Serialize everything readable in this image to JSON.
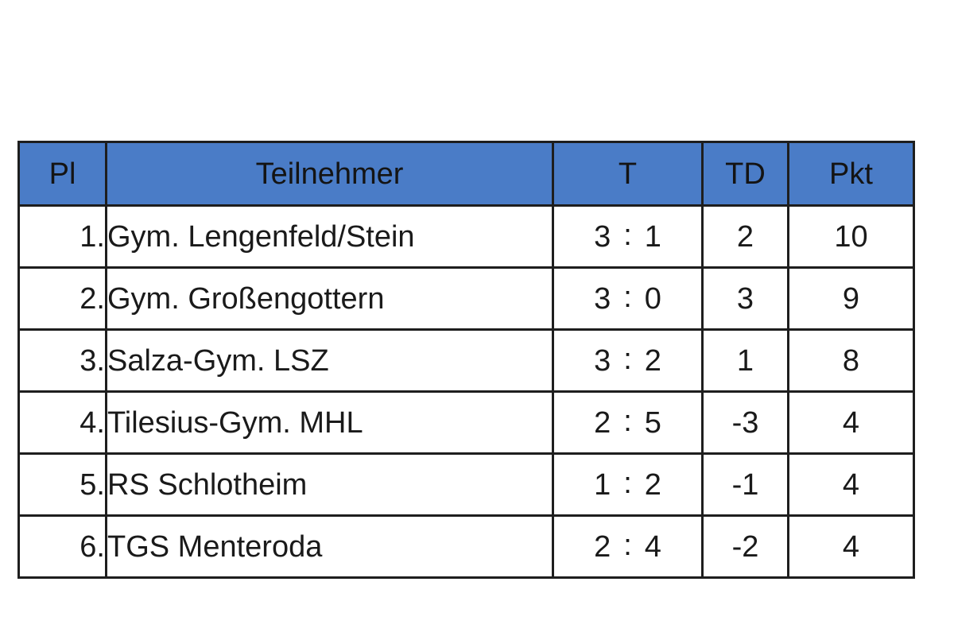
{
  "table": {
    "headers": {
      "place": "Pl",
      "participant": "Teilnehmer",
      "t": "T",
      "td": "TD",
      "pkt": "Pkt"
    },
    "header_color": "#4a7cc7",
    "rows": [
      {
        "place": "1.",
        "name": "Gym. Lengenfeld/Stein",
        "t_for": "3",
        "t_sep": ":",
        "t_against": "1",
        "td": "2",
        "pkt": "10"
      },
      {
        "place": "2.",
        "name": "Gym. Großengottern",
        "t_for": "3",
        "t_sep": ":",
        "t_against": "0",
        "td": "3",
        "pkt": "9"
      },
      {
        "place": "3.",
        "name": "Salza-Gym. LSZ",
        "t_for": "3",
        "t_sep": ":",
        "t_against": "2",
        "td": "1",
        "pkt": "8"
      },
      {
        "place": "4.",
        "name": "Tilesius-Gym. MHL",
        "t_for": "2",
        "t_sep": ":",
        "t_against": "5",
        "td": "-3",
        "pkt": "4"
      },
      {
        "place": "5.",
        "name": "RS Schlotheim",
        "t_for": "1",
        "t_sep": ":",
        "t_against": "2",
        "td": "-1",
        "pkt": "4"
      },
      {
        "place": "6.",
        "name": "TGS Menteroda",
        "t_for": "2",
        "t_sep": ":",
        "t_against": "4",
        "td": "-2",
        "pkt": "4"
      }
    ]
  }
}
